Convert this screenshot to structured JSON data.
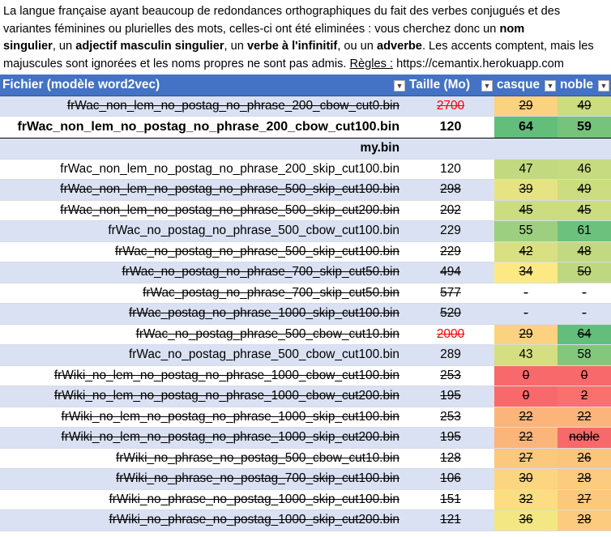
{
  "intro": {
    "line1": "La langue française ayant beaucoup de redondances orthographiques du fait des verbes conjugués et des",
    "line2_a": "variantes féminines ou plurielles des mots, celles-ci ont été eliminées : vous cherchez donc un ",
    "line2_b": "nom",
    "line3_a": "singulier",
    "line3_b": ", un ",
    "line3_c": "adjectif masculin singulier",
    "line3_d": ", un ",
    "line3_e": "verbe à l'infinitif",
    "line3_f": ", ou un ",
    "line3_g": "adverbe",
    "line3_h": ". Les accents comptent, mais les",
    "line4_a": "majuscules sont ignorées et les noms propres ne sont pas admis.  ",
    "line4_rules": "Règles :",
    "line4_url": " https://cemantix.herokuapp.com"
  },
  "table": {
    "headers": [
      "Fichier (modèle word2vec)",
      "Taille (Mo)",
      "casque",
      "noble"
    ],
    "filter_icon": "dropdown-filter-icon",
    "rows": [
      {
        "file": "frWac_non_lem_no_postag_no_phrase_200_cbow_cut0.bin",
        "size": "2700",
        "casque": "29",
        "noble": "49",
        "strike": true,
        "size_red": true,
        "band": true,
        "c1": "#fbd27f",
        "c2": "#cbdc81"
      },
      {
        "file": "frWac_non_lem_no_postag_no_phrase_200_cbow_cut100.bin",
        "size": "120",
        "casque": "64",
        "noble": "59",
        "strike": false,
        "bold": true,
        "band": false,
        "c1": "#63be7b",
        "c2": "#76c47c"
      },
      {
        "file": "my.bin",
        "size": "",
        "casque": "",
        "noble": "",
        "strike": false,
        "bold": true,
        "band": true,
        "c1": "",
        "c2": ""
      },
      {
        "file": "frWac_non_lem_no_postag_no_phrase_200_skip_cut100.bin",
        "size": "120",
        "casque": "47",
        "noble": "46",
        "strike": false,
        "band": false,
        "c1": "#c2d980",
        "c2": "#c6da80"
      },
      {
        "file": "frWac_non_lem_no_postag_no_phrase_500_skip_cut100.bin",
        "size": "298",
        "casque": "39",
        "noble": "49",
        "strike": true,
        "band": true,
        "c1": "#e6e383",
        "c2": "#cbdc81"
      },
      {
        "file": "frWac_non_lem_no_postag_no_phrase_500_skip_cut200.bin",
        "size": "202",
        "casque": "45",
        "noble": "45",
        "strike": true,
        "band": false,
        "c1": "#cbdc81",
        "c2": "#cbdc81"
      },
      {
        "file": "frWac_no_postag_no_phrase_500_cbow_cut100.bin",
        "size": "229",
        "casque": "55",
        "noble": "61",
        "strike": false,
        "band": true,
        "c1": "#9ccf7f",
        "c2": "#6cc17c"
      },
      {
        "file": "frWac_no_postag_no_phrase_500_skip_cut100.bin",
        "size": "229",
        "casque": "42",
        "noble": "48",
        "strike": true,
        "band": false,
        "c1": "#d8e082",
        "c2": "#c2d980"
      },
      {
        "file": "frWac_no_postag_no_phrase_700_skip_cut50.bin",
        "size": "494",
        "casque": "34",
        "noble": "50",
        "strike": true,
        "band": true,
        "c1": "#fce983",
        "c2": "#bfd880"
      },
      {
        "file": "frWac_postag_no_phrase_700_skip_cut50.bin",
        "size": "577",
        "casque": "-",
        "noble": "-",
        "strike": true,
        "band": false,
        "c1": "",
        "c2": ""
      },
      {
        "file": "frWac_postag_no_phrase_1000_skip_cut100.bin",
        "size": "520",
        "casque": "-",
        "noble": "-",
        "strike": true,
        "band": true,
        "c1": "",
        "c2": ""
      },
      {
        "file": "frWac_no_postag_phrase_500_cbow_cut10.bin",
        "size": "2000",
        "casque": "29",
        "noble": "64",
        "strike": true,
        "size_red": true,
        "band": false,
        "c1": "#fbd27f",
        "c2": "#63be7b"
      },
      {
        "file": "frWac_no_postag_phrase_500_cbow_cut100.bin",
        "size": "289",
        "casque": "43",
        "noble": "58",
        "strike": false,
        "band": true,
        "c1": "#d4df81",
        "c2": "#83c77d"
      },
      {
        "file": "frWiki_no_lem_no_postag_no_phrase_1000_cbow_cut100.bin",
        "size": "253",
        "casque": "0",
        "noble": "0",
        "strike": true,
        "band": false,
        "c1": "#f8696b",
        "c2": "#f8696b"
      },
      {
        "file": "frWiki_no_lem_no_postag_no_phrase_1000_cbow_cut200.bin",
        "size": "195",
        "casque": "0",
        "noble": "2",
        "strike": true,
        "band": true,
        "c1": "#f8696b",
        "c2": "#f8716c"
      },
      {
        "file": "frWiki_no_lem_no_postag_no_phrase_1000_skip_cut100.bin",
        "size": "253",
        "casque": "22",
        "noble": "22",
        "strike": true,
        "band": false,
        "c1": "#fbb57a",
        "c2": "#fbb57a"
      },
      {
        "file": "frWiki_no_lem_no_postag_no_phrase_1000_skip_cut200.bin",
        "size": "195",
        "casque": "22",
        "noble": "noble",
        "strike": true,
        "band": true,
        "c1": "#fbb57a",
        "c2": "#f8696b"
      },
      {
        "file": "frWiki_no_phrase_no_postag_500_cbow_cut10.bin",
        "size": "128",
        "casque": "27",
        "noble": "26",
        "strike": true,
        "band": false,
        "c1": "#fcc87d",
        "c2": "#fbc57d"
      },
      {
        "file": "frWiki_no_phrase_no_postag_700_skip_cut100.bin",
        "size": "106",
        "casque": "30",
        "noble": "28",
        "strike": true,
        "band": true,
        "c1": "#fcd580",
        "c2": "#fccb7e"
      },
      {
        "file": "frWiki_no_phrase_no_postag_1000_skip_cut100.bin",
        "size": "151",
        "casque": "32",
        "noble": "27",
        "strike": true,
        "band": false,
        "c1": "#fcdd81",
        "c2": "#fcc87d"
      },
      {
        "file": "frWiki_no_phrase_no_postag_1000_skip_cut200.bin",
        "size": "121",
        "casque": "36",
        "noble": "28",
        "strike": true,
        "band": true,
        "c1": "#f3e783",
        "c2": "#fccb7e"
      }
    ]
  }
}
